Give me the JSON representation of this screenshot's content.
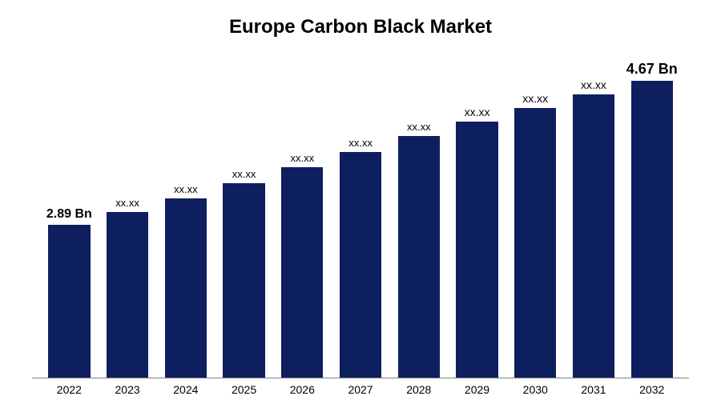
{
  "chart": {
    "type": "bar",
    "title": "Europe Carbon Black Market",
    "title_fontsize": 24,
    "title_fontweight": 700,
    "background_color": "#ffffff",
    "axis_line_color": "#808080",
    "bar_color": "#0d1f5e",
    "bar_width_pct": 72,
    "y_max": 5.0,
    "categories": [
      "2022",
      "2023",
      "2024",
      "2025",
      "2026",
      "2027",
      "2028",
      "2029",
      "2030",
      "2031",
      "2032"
    ],
    "values": [
      2.89,
      3.05,
      3.22,
      3.41,
      3.6,
      3.79,
      3.99,
      4.17,
      4.34,
      4.51,
      4.67
    ],
    "value_labels": [
      "2.89 Bn",
      "xx.xx",
      "xx.xx",
      "xx.xx",
      "xx.xx",
      "xx.xx",
      "xx.xx",
      "xx.xx",
      "xx.xx",
      "xx.xx",
      "4.67 Bn"
    ],
    "label_fontsizes": [
      16,
      13,
      13,
      13,
      13,
      13,
      13,
      14,
      14,
      14,
      18
    ],
    "label_fontweights": [
      700,
      400,
      400,
      400,
      400,
      400,
      400,
      400,
      400,
      400,
      700
    ],
    "xtick_fontsize": 14,
    "xtick_color": "#000000",
    "label_color": "#000000",
    "value_offset": 1.0
  }
}
